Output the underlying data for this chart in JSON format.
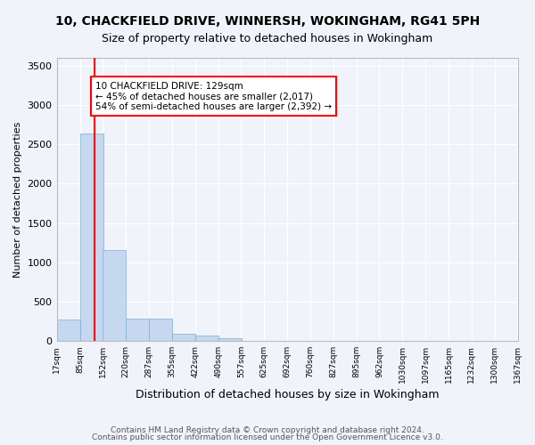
{
  "title_line1": "10, CHACKFIELD DRIVE, WINNERSH, WOKINGHAM, RG41 5PH",
  "title_line2": "Size of property relative to detached houses in Wokingham",
  "xlabel": "Distribution of detached houses by size in Wokingham",
  "ylabel": "Number of detached properties",
  "bar_color": "#c5d8f0",
  "bar_edgecolor": "#7aafd4",
  "annotation_text": "10 CHACKFIELD DRIVE: 129sqm\n← 45% of detached houses are smaller (2,017)\n54% of semi-detached houses are larger (2,392) →",
  "annotation_box_edgecolor": "red",
  "vline_x": 129,
  "vline_color": "red",
  "bin_edges": [
    17,
    85,
    152,
    220,
    287,
    355,
    422,
    490,
    557,
    625,
    692,
    760,
    827,
    895,
    962,
    1030,
    1097,
    1165,
    1232,
    1300,
    1367
  ],
  "bin_labels": [
    "17sqm",
    "85sqm",
    "152sqm",
    "220sqm",
    "287sqm",
    "355sqm",
    "422sqm",
    "490sqm",
    "557sqm",
    "625sqm",
    "692sqm",
    "760sqm",
    "827sqm",
    "895sqm",
    "962sqm",
    "1030sqm",
    "1097sqm",
    "1165sqm",
    "1232sqm",
    "1300sqm",
    "1367sqm"
  ],
  "bar_heights": [
    270,
    2640,
    1150,
    285,
    285,
    95,
    65,
    40,
    0,
    0,
    0,
    0,
    0,
    0,
    0,
    0,
    0,
    0,
    0,
    0
  ],
  "ylim": [
    0,
    3600
  ],
  "yticks": [
    0,
    500,
    1000,
    1500,
    2000,
    2500,
    3000,
    3500
  ],
  "footer_line1": "Contains HM Land Registry data © Crown copyright and database right 2024.",
  "footer_line2": "Contains public sector information licensed under the Open Government Licence v3.0.",
  "background_color": "#f0f4fa",
  "plot_background_color": "#f0f4fa",
  "grid_color": "#ffffff"
}
